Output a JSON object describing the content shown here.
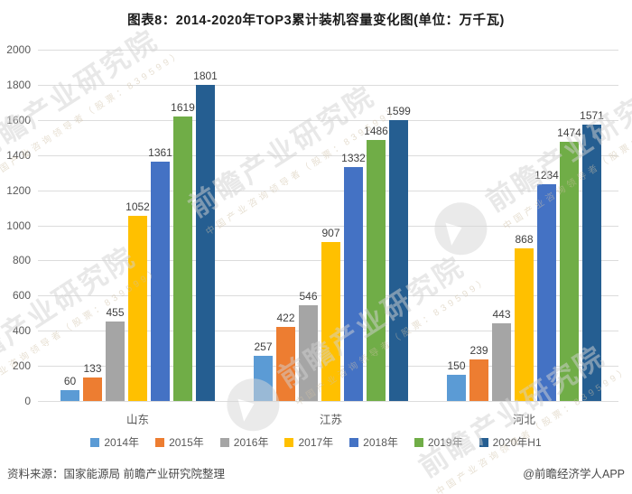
{
  "title": "图表8：2014-2020年TOP3累计装机容量变化图(单位：万千瓦)",
  "chart_data": {
    "type": "bar",
    "categories": [
      "山东",
      "江苏",
      "河北"
    ],
    "series": [
      {
        "name": "2014年",
        "color": "#5B9BD5",
        "values": [
          60,
          257,
          150
        ]
      },
      {
        "name": "2015年",
        "color": "#ED7D31",
        "values": [
          133,
          422,
          239
        ]
      },
      {
        "name": "2016年",
        "color": "#A5A5A5",
        "values": [
          455,
          546,
          443
        ]
      },
      {
        "name": "2017年",
        "color": "#FFC000",
        "values": [
          1052,
          907,
          868
        ]
      },
      {
        "name": "2018年",
        "color": "#4472C4",
        "values": [
          1361,
          1332,
          1234
        ]
      },
      {
        "name": "2019年",
        "color": "#70AD47",
        "values": [
          1619,
          1486,
          1474
        ]
      },
      {
        "name": "2020年H1",
        "color": "#255E91",
        "values": [
          1801,
          1599,
          1571
        ]
      }
    ],
    "title": "图表8：2014-2020年TOP3累计装机容量变化图(单位：万千瓦)",
    "xlabel": "",
    "ylabel": "",
    "ylim": [
      0,
      2000
    ],
    "ytick_step": 200,
    "grid": true,
    "legend_position": "bottom",
    "data_labels": true
  },
  "footer": {
    "source": "资料来源：国家能源局 前瞻产业研究院整理",
    "credit": "@前瞻经济学人APP"
  },
  "watermark": {
    "text": "前瞻产业研究院",
    "subtext": "中国产业咨询领导者（股票：839599）"
  }
}
